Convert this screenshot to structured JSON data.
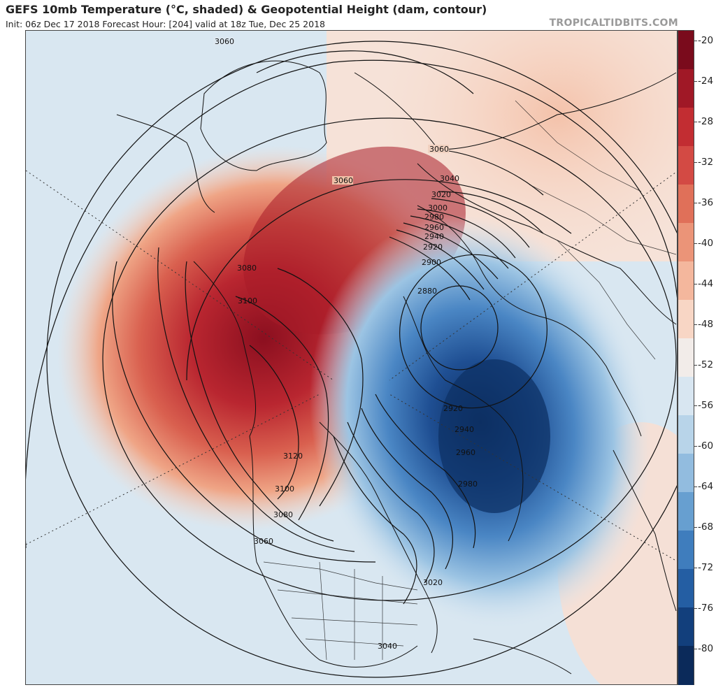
{
  "header": {
    "title": "GEFS 10mb Temperature (°C, shaded) & Geopotential Height (dam, contour)",
    "subtitle": "Init: 06z Dec 17 2018   Forecast Hour: [204]   valid at 18z Tue, Dec 25 2018",
    "brand": "TROPICALTIDBITS.COM"
  },
  "colorbar": {
    "labels": [
      "-20",
      "-24",
      "-28",
      "-32",
      "-36",
      "-40",
      "-44",
      "-48",
      "-52",
      "-56",
      "-60",
      "-64",
      "-68",
      "-72",
      "-76",
      "-80"
    ],
    "colors": [
      "#7a0b1c",
      "#a01826",
      "#c22d32",
      "#d34a44",
      "#e07059",
      "#eb9478",
      "#f4b79d",
      "#f8d6c5",
      "#f2ece9",
      "#d8e6f1",
      "#b8d4e9",
      "#92bcdf",
      "#679fd0",
      "#3f7dbd",
      "#245ea3",
      "#123f7c",
      "#0b2a5a"
    ]
  },
  "contours": {
    "labels": [
      "3060",
      "3060",
      "3060",
      "3040",
      "3020",
      "3000",
      "2980",
      "2960",
      "2940",
      "2920",
      "2900",
      "2880",
      "3080",
      "3100",
      "3120",
      "3100",
      "3080",
      "3060",
      "2920",
      "2940",
      "2960",
      "2980",
      "3020",
      "3040"
    ]
  }
}
